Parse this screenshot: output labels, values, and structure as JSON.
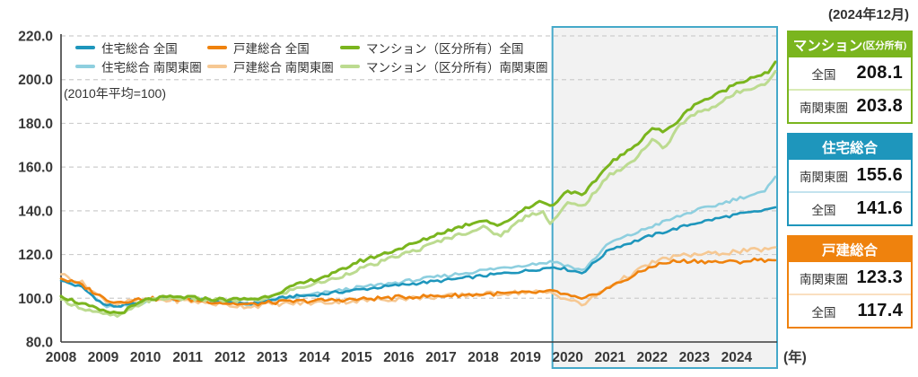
{
  "legend": {
    "items": [
      {
        "label": "住宅総合 全国",
        "color": "#1e96bc"
      },
      {
        "label": "住宅総合 南関東圏",
        "color": "#8ecfdf"
      },
      {
        "label": "戸建総合 全国",
        "color": "#ef820d"
      },
      {
        "label": "戸建総合 南関東圏",
        "color": "#f6c893"
      },
      {
        "label": "マンション（区分所有）全国",
        "color": "#7ab51e"
      },
      {
        "label": "マンション（区分所有）南関東圏",
        "color": "#bcdb90"
      }
    ]
  },
  "summary_panel": {
    "date_label": "(2024年12月)",
    "boxes": [
      {
        "title": "マンション",
        "title_suffix": "(区分所有)",
        "color": "#7ab51e",
        "tint": "#d9ebb5",
        "rows": [
          {
            "label": "全国",
            "value": "208.1"
          },
          {
            "label": "南関東圏",
            "value": "203.8"
          }
        ]
      },
      {
        "title": "住宅総合",
        "color": "#1e96bc",
        "tint": "#c3e3ee",
        "rows": [
          {
            "label": "南関東圏",
            "value": "155.6"
          },
          {
            "label": "全国",
            "value": "141.6"
          }
        ]
      },
      {
        "title": "戸建総合",
        "color": "#ef820d",
        "tint": "#fadfc0",
        "rows": [
          {
            "label": "南関東圏",
            "value": "123.3"
          },
          {
            "label": "全国",
            "value": "117.4"
          }
        ]
      }
    ]
  },
  "chart_data": {
    "type": "line",
    "base_note": "(2010年平均=100)",
    "y_axis": {
      "min": 80,
      "max": 220,
      "ticks": [
        80,
        100,
        120,
        140,
        160,
        180,
        200,
        220
      ]
    },
    "x_axis": {
      "years": [
        2008,
        2009,
        2010,
        2011,
        2012,
        2013,
        2014,
        2015,
        2016,
        2017,
        2018,
        2019,
        2020,
        2021,
        2022,
        2023,
        2024
      ],
      "unit": "(年)"
    },
    "highlight": {
      "from_year": 2020,
      "to_year": 2024,
      "fill": "#f2f2f2",
      "border": "#45a9c9"
    },
    "grid_color": "#cdcdcd",
    "axis_color": "#3c3c3c",
    "frequency": "monthly",
    "series": [
      {
        "id": "housing-minamikanto",
        "name": "住宅総合 南関東圏",
        "color": "#8ecfdf",
        "width": 2.6,
        "jitter": 1.5,
        "seed": 2,
        "final_value": 155.6,
        "anchors": [
          [
            2008.0,
            109.0
          ],
          [
            2008.5,
            106.0
          ],
          [
            2009.0,
            96.6
          ],
          [
            2009.3,
            95.8
          ],
          [
            2009.8,
            97.2
          ],
          [
            2010.2,
            99.5
          ],
          [
            2010.5,
            100.0
          ],
          [
            2011.0,
            99.3
          ],
          [
            2012.0,
            97.6
          ],
          [
            2012.5,
            97.2
          ],
          [
            2013.0,
            99.0
          ],
          [
            2014.0,
            101.8
          ],
          [
            2015.0,
            104.8
          ],
          [
            2016.0,
            107.3
          ],
          [
            2017.0,
            110.0
          ],
          [
            2018.0,
            112.8
          ],
          [
            2019.0,
            115.3
          ],
          [
            2019.7,
            116.8
          ],
          [
            2020.35,
            112.5
          ],
          [
            2021.0,
            125.5
          ],
          [
            2021.5,
            129.0
          ],
          [
            2022.0,
            133.0
          ],
          [
            2022.5,
            136.5
          ],
          [
            2023.0,
            140.0
          ],
          [
            2023.5,
            142.5
          ],
          [
            2024.0,
            145.5
          ],
          [
            2024.4,
            147.5
          ],
          [
            2024.67,
            148.5
          ],
          [
            2024.91,
            155.6
          ]
        ]
      },
      {
        "id": "housing-national",
        "name": "住宅総合 全国",
        "color": "#1e96bc",
        "width": 2.6,
        "jitter": 1.3,
        "seed": 1,
        "final_value": 141.6,
        "anchors": [
          [
            2008.0,
            108.0
          ],
          [
            2008.5,
            105.0
          ],
          [
            2009.0,
            97.2
          ],
          [
            2009.3,
            96.3
          ],
          [
            2009.8,
            97.5
          ],
          [
            2010.2,
            99.6
          ],
          [
            2010.5,
            100.2
          ],
          [
            2011.0,
            99.8
          ],
          [
            2011.5,
            99.2
          ],
          [
            2012.0,
            98.2
          ],
          [
            2012.6,
            97.6
          ],
          [
            2013.0,
            99.2
          ],
          [
            2013.4,
            100.8
          ],
          [
            2014.0,
            101.4
          ],
          [
            2015.0,
            103.8
          ],
          [
            2016.0,
            106.0
          ],
          [
            2017.0,
            108.0
          ],
          [
            2018.0,
            110.3
          ],
          [
            2019.0,
            112.5
          ],
          [
            2019.7,
            114.4
          ],
          [
            2020.35,
            111.6
          ],
          [
            2021.0,
            122.5
          ],
          [
            2021.5,
            125.5
          ],
          [
            2022.0,
            128.8
          ],
          [
            2022.5,
            131.5
          ],
          [
            2023.0,
            134.3
          ],
          [
            2023.5,
            136.3
          ],
          [
            2024.0,
            138.3
          ],
          [
            2024.5,
            139.6
          ],
          [
            2024.91,
            141.6
          ]
        ]
      },
      {
        "id": "detached-minamikanto",
        "name": "戸建総合 南関東圏",
        "color": "#f6c893",
        "width": 2.6,
        "jitter": 2.2,
        "seed": 4,
        "final_value": 123.3,
        "anchors": [
          [
            2008.0,
            111.0
          ],
          [
            2008.5,
            107.0
          ],
          [
            2009.0,
            99.5
          ],
          [
            2009.3,
            97.6
          ],
          [
            2010.0,
            99.4
          ],
          [
            2011.0,
            98.8
          ],
          [
            2012.0,
            96.8
          ],
          [
            2012.5,
            96.3
          ],
          [
            2013.0,
            97.4
          ],
          [
            2014.0,
            97.9
          ],
          [
            2015.0,
            98.8
          ],
          [
            2016.0,
            99.8
          ],
          [
            2017.0,
            100.8
          ],
          [
            2018.0,
            101.9
          ],
          [
            2019.0,
            102.8
          ],
          [
            2019.6,
            102.6
          ],
          [
            2020.35,
            96.9
          ],
          [
            2021.0,
            105.6
          ],
          [
            2021.7,
            113.0
          ],
          [
            2022.0,
            116.3
          ],
          [
            2022.5,
            119.0
          ],
          [
            2023.0,
            120.0
          ],
          [
            2023.5,
            120.4
          ],
          [
            2024.0,
            121.4
          ],
          [
            2024.5,
            122.0
          ],
          [
            2024.91,
            123.3
          ]
        ]
      },
      {
        "id": "detached-national",
        "name": "戸建総合 全国",
        "color": "#ef820d",
        "width": 2.6,
        "jitter": 1.8,
        "seed": 3,
        "final_value": 117.4,
        "anchors": [
          [
            2008.0,
            109.0
          ],
          [
            2008.5,
            106.0
          ],
          [
            2009.0,
            100.2
          ],
          [
            2009.3,
            98.2
          ],
          [
            2010.0,
            99.8
          ],
          [
            2011.0,
            99.4
          ],
          [
            2011.5,
            98.6
          ],
          [
            2012.0,
            97.6
          ],
          [
            2012.5,
            97.1
          ],
          [
            2013.0,
            98.1
          ],
          [
            2014.0,
            98.9
          ],
          [
            2015.0,
            99.5
          ],
          [
            2016.0,
            100.5
          ],
          [
            2017.0,
            101.1
          ],
          [
            2018.0,
            101.9
          ],
          [
            2019.0,
            102.4
          ],
          [
            2019.7,
            103.1
          ],
          [
            2020.35,
            99.2
          ],
          [
            2021.0,
            105.1
          ],
          [
            2021.7,
            111.6
          ],
          [
            2022.0,
            114.8
          ],
          [
            2022.5,
            116.8
          ],
          [
            2023.0,
            117.1
          ],
          [
            2023.5,
            116.6
          ],
          [
            2024.0,
            116.6
          ],
          [
            2024.5,
            117.6
          ],
          [
            2024.91,
            117.4
          ]
        ]
      },
      {
        "id": "condo-minamikanto",
        "name": "マンション（区分所有）南関東圏",
        "color": "#bcdb90",
        "width": 3,
        "jitter": 1.7,
        "seed": 6,
        "final_value": 203.8,
        "anchors": [
          [
            2008.0,
            99.5
          ],
          [
            2008.5,
            95.5
          ],
          [
            2009.0,
            92.6
          ],
          [
            2009.4,
            91.9
          ],
          [
            2010.0,
            98.8
          ],
          [
            2010.5,
            100.0
          ],
          [
            2011.0,
            100.0
          ],
          [
            2011.5,
            99.2
          ],
          [
            2012.0,
            98.9
          ],
          [
            2012.7,
            99.4
          ],
          [
            2013.0,
            100.9
          ],
          [
            2013.5,
            104.0
          ],
          [
            2014.0,
            106.6
          ],
          [
            2014.5,
            109.0
          ],
          [
            2015.0,
            113.0
          ],
          [
            2015.5,
            116.0
          ],
          [
            2016.0,
            119.6
          ],
          [
            2016.5,
            122.5
          ],
          [
            2017.0,
            126.5
          ],
          [
            2017.5,
            129.5
          ],
          [
            2018.0,
            132.4
          ],
          [
            2018.4,
            128.6
          ],
          [
            2019.0,
            137.4
          ],
          [
            2019.4,
            140.0
          ],
          [
            2019.6,
            134.2
          ],
          [
            2020.0,
            143.4
          ],
          [
            2020.35,
            142.0
          ],
          [
            2021.0,
            156.4
          ],
          [
            2021.5,
            162.0
          ],
          [
            2022.0,
            172.4
          ],
          [
            2022.3,
            168.5
          ],
          [
            2022.6,
            178.0
          ],
          [
            2023.0,
            184.4
          ],
          [
            2023.5,
            188.0
          ],
          [
            2024.0,
            194.0
          ],
          [
            2024.5,
            197.4
          ],
          [
            2024.75,
            198.8
          ],
          [
            2024.91,
            203.8
          ]
        ]
      },
      {
        "id": "condo-national",
        "name": "マンション（区分所有）全国",
        "color": "#7ab51e",
        "width": 3,
        "jitter": 1.6,
        "seed": 5,
        "final_value": 208.1,
        "anchors": [
          [
            2008.0,
            101.0
          ],
          [
            2008.5,
            97.4
          ],
          [
            2009.0,
            94.0
          ],
          [
            2009.4,
            93.2
          ],
          [
            2010.0,
            99.2
          ],
          [
            2010.5,
            100.4
          ],
          [
            2011.0,
            100.5
          ],
          [
            2011.5,
            99.6
          ],
          [
            2012.0,
            99.4
          ],
          [
            2012.7,
            99.9
          ],
          [
            2013.0,
            101.6
          ],
          [
            2013.5,
            105.5
          ],
          [
            2014.0,
            108.6
          ],
          [
            2014.5,
            111.5
          ],
          [
            2015.0,
            116.5
          ],
          [
            2015.5,
            119.5
          ],
          [
            2016.0,
            122.6
          ],
          [
            2016.5,
            126.0
          ],
          [
            2017.0,
            130.0
          ],
          [
            2017.5,
            133.0
          ],
          [
            2018.0,
            136.0
          ],
          [
            2018.4,
            133.0
          ],
          [
            2019.0,
            141.4
          ],
          [
            2019.4,
            144.5
          ],
          [
            2019.6,
            141.8
          ],
          [
            2020.0,
            149.4
          ],
          [
            2020.35,
            146.6
          ],
          [
            2021.0,
            162.0
          ],
          [
            2021.5,
            168.0
          ],
          [
            2022.0,
            177.9
          ],
          [
            2022.3,
            176.0
          ],
          [
            2022.6,
            181.0
          ],
          [
            2023.0,
            188.8
          ],
          [
            2023.5,
            192.8
          ],
          [
            2024.0,
            198.4
          ],
          [
            2024.5,
            202.0
          ],
          [
            2024.75,
            203.0
          ],
          [
            2024.91,
            208.1
          ]
        ]
      }
    ]
  }
}
